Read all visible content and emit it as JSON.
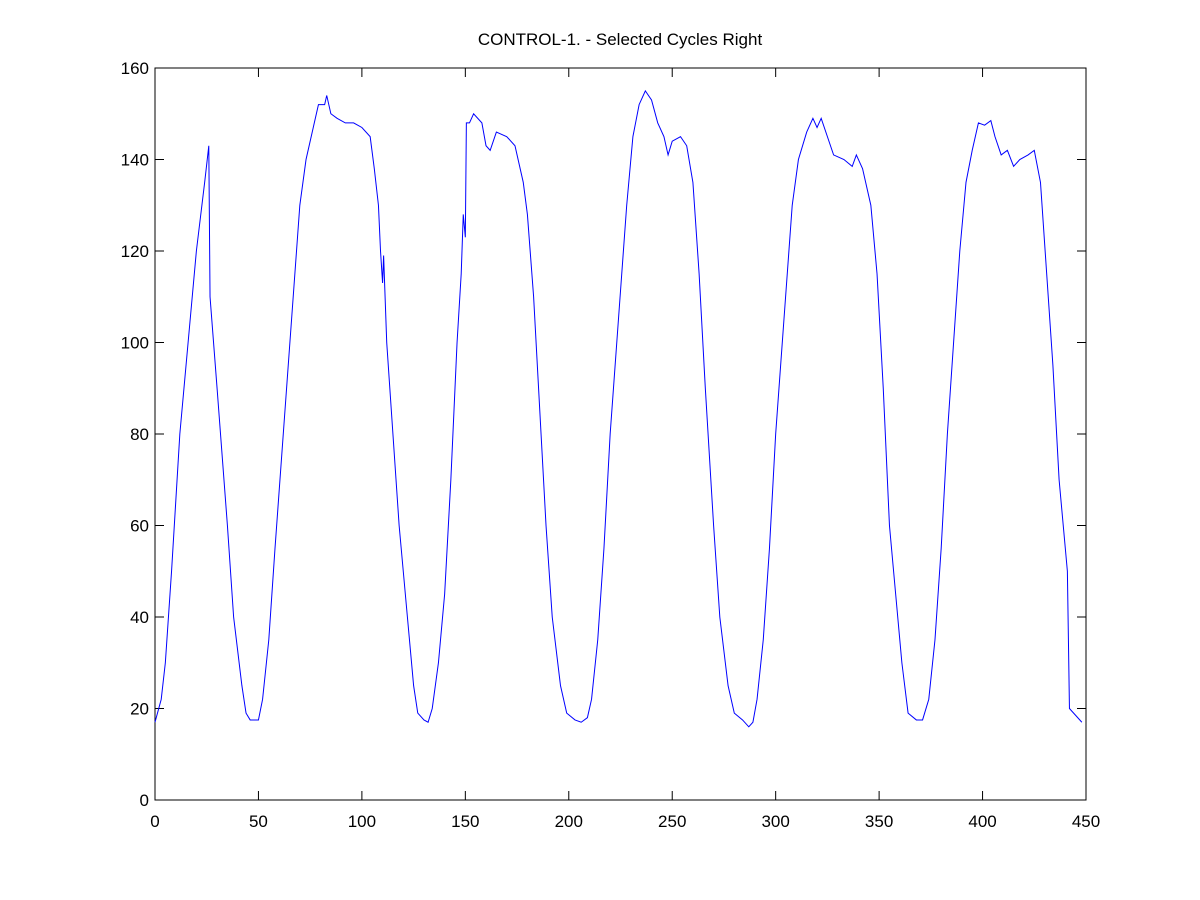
{
  "chart_data": {
    "type": "line",
    "title": "CONTROL-1. - Selected Cycles Right",
    "color": "#0000ff",
    "x": [
      0,
      3,
      5,
      8,
      12,
      16,
      20,
      24,
      26,
      26.6,
      30,
      35,
      38,
      42,
      44,
      46,
      50,
      52,
      55,
      58,
      62,
      66,
      70,
      73,
      77,
      79,
      82,
      83,
      85,
      88,
      92,
      96,
      100,
      104,
      106,
      108,
      109,
      110,
      110.5,
      112,
      115,
      118,
      122,
      125,
      127,
      130,
      132,
      134,
      137,
      140,
      143,
      146,
      148,
      149,
      150,
      150.5,
      152,
      154,
      158,
      160,
      162,
      165,
      170,
      174,
      178,
      180,
      183,
      186,
      189,
      192,
      196,
      199,
      203,
      206,
      209,
      211,
      214,
      217,
      220,
      224,
      228,
      231,
      234,
      237,
      240,
      243,
      246,
      248,
      250,
      254,
      257,
      260,
      263,
      266,
      270,
      273,
      277,
      280,
      284,
      287,
      289,
      291,
      294,
      297,
      300,
      304,
      308,
      311,
      315,
      318,
      320,
      322,
      325,
      328,
      333,
      337,
      339,
      342,
      346,
      349,
      352,
      355,
      358,
      361,
      364,
      368,
      371,
      374,
      377,
      380,
      383,
      386,
      389,
      392,
      395,
      398,
      401,
      404,
      406,
      409,
      412,
      415,
      418,
      422,
      425,
      428,
      431,
      434,
      437,
      440,
      441,
      442,
      445,
      448
    ],
    "values": [
      17,
      22,
      30,
      50,
      80,
      100,
      120,
      135,
      143,
      110,
      90,
      60,
      40,
      25,
      19,
      17.5,
      17.5,
      22,
      35,
      55,
      80,
      105,
      130,
      140,
      148,
      152,
      152,
      154,
      150,
      149,
      148,
      148,
      147,
      145,
      138,
      130,
      120,
      113,
      119,
      100,
      80,
      60,
      40,
      25,
      19,
      17.5,
      17,
      20,
      30,
      45,
      70,
      100,
      115,
      128,
      123,
      148,
      148,
      150,
      148,
      143,
      142,
      146,
      145,
      143,
      135,
      128,
      110,
      85,
      60,
      40,
      25,
      19,
      17.5,
      17,
      18,
      22,
      35,
      55,
      80,
      105,
      130,
      145,
      152,
      155,
      153,
      148,
      145,
      141,
      144,
      145,
      143,
      135,
      115,
      90,
      60,
      40,
      25,
      19,
      17.5,
      16,
      17,
      22,
      35,
      55,
      80,
      105,
      130,
      140,
      146,
      149,
      147,
      149,
      145,
      141,
      140,
      138.5,
      141,
      138,
      130,
      115,
      90,
      60,
      45,
      30,
      19,
      17.5,
      17.5,
      22,
      35,
      55,
      80,
      100,
      120,
      135,
      142,
      148,
      147.5,
      148.5,
      145,
      141,
      142,
      138.5,
      140,
      141,
      142,
      135,
      115,
      95,
      70,
      55,
      50,
      20,
      18.5,
      17
    ],
    "xlim": [
      0,
      450
    ],
    "ylim": [
      0,
      160
    ],
    "xticks": [
      0,
      50,
      100,
      150,
      200,
      250,
      300,
      350,
      400,
      450
    ],
    "yticks": [
      0,
      20,
      40,
      60,
      80,
      100,
      120,
      140,
      160
    ]
  }
}
